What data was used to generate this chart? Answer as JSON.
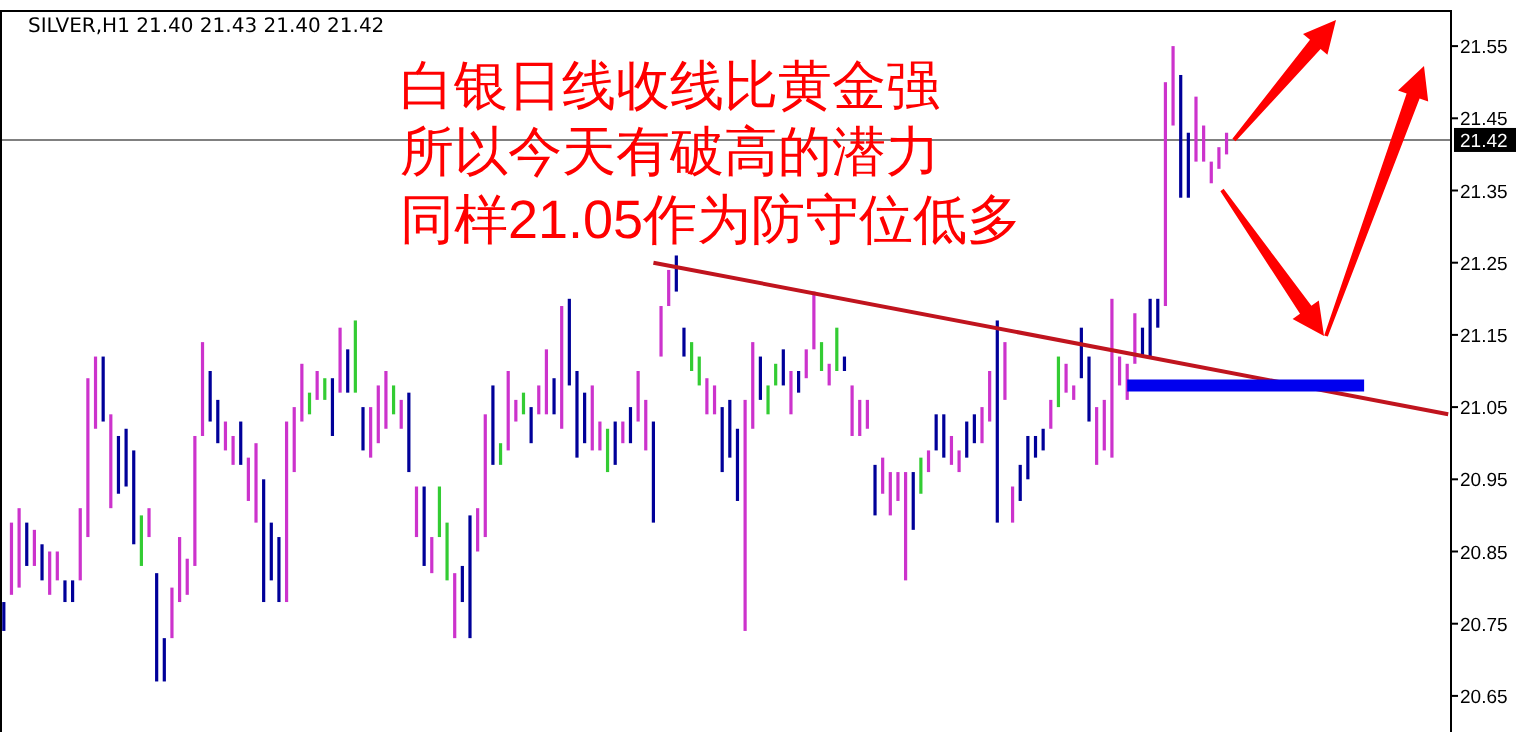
{
  "chart_data": {
    "type": "bar",
    "title": "SILVER,H1  21.40 21.43 21.40 21.42",
    "annotations": [
      "白银日线收线比黄金强",
      "所以今天有破高的潜力",
      "同样21.05作为防守位低多"
    ],
    "categories": [
      null,
      null,
      null,
      null,
      null,
      null,
      null,
      null,
      null,
      null,
      null,
      null,
      null,
      null,
      null,
      null,
      null,
      null,
      null,
      null,
      null,
      null,
      null,
      null,
      null,
      null,
      null,
      null,
      null,
      null,
      null,
      null,
      null,
      null,
      null,
      null,
      null,
      null,
      null,
      null,
      null,
      null,
      null,
      null,
      null,
      null,
      null,
      null,
      null,
      null,
      null,
      null,
      null,
      null,
      null,
      null,
      null,
      null,
      null,
      null,
      null,
      null,
      null,
      null,
      null,
      null,
      null,
      null,
      null,
      null,
      null,
      null,
      null,
      null,
      null,
      null,
      null,
      null,
      null,
      null,
      null,
      null,
      null,
      null,
      null,
      null,
      null,
      null,
      null,
      null,
      null,
      null,
      null,
      null,
      null,
      null,
      null,
      null,
      null,
      null,
      null,
      null,
      null,
      null,
      null,
      null,
      null,
      null,
      null,
      null,
      null,
      null,
      null,
      null,
      null,
      null,
      null,
      null,
      null,
      null,
      null,
      null,
      null,
      null,
      null,
      null,
      null,
      null,
      null,
      null,
      null,
      null,
      null,
      null,
      null,
      null,
      null,
      null,
      null,
      null,
      null,
      null,
      null,
      null,
      null,
      null,
      null,
      null,
      null,
      null,
      null,
      null,
      null,
      null,
      null,
      null,
      null,
      null,
      null,
      null,
      null,
      null,
      null,
      null,
      null,
      null,
      null,
      null,
      null,
      null,
      null,
      null,
      null,
      null,
      null,
      null,
      null,
      null,
      null,
      null,
      null,
      null,
      null,
      null,
      null,
      null,
      null,
      null,
      null,
      null
    ],
    "ylim": [
      20.6,
      21.6
    ],
    "yticks": [
      20.65,
      20.75,
      20.85,
      20.95,
      21.05,
      21.15,
      21.25,
      21.35,
      21.45,
      21.55
    ],
    "ref_lines": [
      {
        "axis": "y",
        "value": 21.42,
        "label": "21.42",
        "color": "#808080"
      }
    ],
    "series": [
      {
        "base": [
          20.74,
          20.79,
          20.8,
          20.83,
          20.83,
          20.81,
          20.79,
          20.81,
          20.78,
          20.78,
          20.81,
          20.87,
          21.02,
          21.03,
          20.91,
          20.93,
          20.94,
          20.86,
          20.83,
          20.87,
          20.67,
          20.67,
          20.73,
          20.78,
          20.79,
          20.83,
          21.01,
          21.03,
          21.0,
          20.99,
          20.97,
          20.97,
          20.92,
          20.89,
          20.78,
          20.81,
          20.78,
          20.78,
          20.96,
          21.03,
          21.04,
          21.06,
          21.06,
          21.01,
          21.07,
          21.07,
          21.07,
          20.99,
          20.98,
          21.0,
          21.02,
          21.04,
          21.02,
          20.96,
          20.87,
          20.83,
          20.82,
          20.87,
          20.81,
          20.73,
          20.78,
          20.73,
          20.85,
          20.87,
          20.97,
          20.97,
          20.99,
          21.03,
          21.04,
          21.0,
          21.04,
          21.04,
          21.04,
          21.02,
          21.08,
          20.98,
          21.0,
          20.99,
          20.99,
          20.96,
          20.97,
          21.0,
          21.0,
          21.03,
          20.99,
          20.89,
          21.12,
          21.19,
          21.21,
          21.12,
          21.1,
          21.08,
          21.04,
          21.04,
          20.96,
          20.98,
          20.92,
          20.74,
          21.02,
          21.06,
          21.04,
          21.08,
          21.08,
          21.04,
          21.07,
          21.09,
          21.13,
          21.1,
          21.08,
          21.1,
          21.1,
          21.01,
          21.01,
          21.02,
          20.9,
          20.93,
          20.9,
          20.92,
          20.81,
          20.88,
          20.93,
          20.96,
          20.99,
          20.98,
          20.97,
          20.96,
          20.98,
          21.0,
          21.0,
          21.03,
          20.89,
          21.06,
          20.89,
          20.92,
          20.95,
          20.98,
          20.99,
          21.02,
          21.05,
          21.07,
          21.06,
          21.09,
          21.03,
          20.97,
          20.99,
          20.98,
          21.08,
          21.06,
          21.11,
          21.12,
          21.12,
          21.16,
          21.19,
          21.44,
          21.34,
          21.34,
          21.39,
          21.39,
          21.36,
          21.38,
          21.4,
          null,
          null,
          null,
          null,
          null,
          null,
          null,
          null,
          null,
          null,
          null,
          null,
          null,
          null,
          null,
          null,
          null,
          null,
          null,
          null,
          null,
          null,
          null,
          null,
          null,
          null,
          null,
          null,
          null
        ],
        "values": [
          0.04,
          0.1,
          0.11,
          0.06,
          0.05,
          0.05,
          0.06,
          0.04,
          0.03,
          0.03,
          0.1,
          0.22,
          0.1,
          0.09,
          0.13,
          0.08,
          0.08,
          0.13,
          0.07,
          0.04,
          0.15,
          0.06,
          0.07,
          0.09,
          0.05,
          0.18,
          0.13,
          0.07,
          0.06,
          0.04,
          0.04,
          0.06,
          0.06,
          0.11,
          0.17,
          0.08,
          0.09,
          0.25,
          0.09,
          0.08,
          0.03,
          0.04,
          0.03,
          0.08,
          0.09,
          0.06,
          0.1,
          0.06,
          0.07,
          0.08,
          0.08,
          0.04,
          0.04,
          0.11,
          0.07,
          0.11,
          0.05,
          0.07,
          0.08,
          0.09,
          0.05,
          0.17,
          0.06,
          0.17,
          0.11,
          0.03,
          0.11,
          0.03,
          0.03,
          0.05,
          0.04,
          0.09,
          0.05,
          0.17,
          0.12,
          0.12,
          0.07,
          0.09,
          0.04,
          0.06,
          0.06,
          0.03,
          0.05,
          0.07,
          0.07,
          0.14,
          0.07,
          0.05,
          0.05,
          0.04,
          0.04,
          0.04,
          0.05,
          0.04,
          0.09,
          0.08,
          0.1,
          0.32,
          0.12,
          0.06,
          0.04,
          0.03,
          0.05,
          0.06,
          0.03,
          0.04,
          0.08,
          0.04,
          0.03,
          0.06,
          0.02,
          0.07,
          0.05,
          0.04,
          0.07,
          0.05,
          0.06,
          0.04,
          0.15,
          0.08,
          0.05,
          0.03,
          0.05,
          0.06,
          0.04,
          0.03,
          0.05,
          0.04,
          0.05,
          0.07,
          0.28,
          0.08,
          0.05,
          0.05,
          0.06,
          0.03,
          0.03,
          0.04,
          0.07,
          0.04,
          0.02,
          0.07,
          0.09,
          0.08,
          0.07,
          0.22,
          0.04,
          0.05,
          0.07,
          0.04,
          0.08,
          0.04,
          0.31,
          0.11,
          0.17,
          0.09,
          0.09,
          0.05,
          0.03,
          0.03,
          0.03,
          null,
          null,
          null,
          null,
          null,
          null,
          null,
          null,
          null,
          null,
          null,
          null,
          null,
          null,
          null,
          null,
          null,
          null,
          null,
          null,
          null,
          null,
          null,
          null,
          null,
          null,
          null,
          null,
          null
        ],
        "colors": [
          "#000099",
          "#cc33cc",
          "#cc33cc",
          "#000099",
          "#cc33cc",
          "#000099",
          "#cc33cc",
          "#cc33cc",
          "#000099",
          "#000099",
          "#cc33cc",
          "#cc33cc",
          "#cc33cc",
          "#000099",
          "#cc33cc",
          "#000099",
          "#000099",
          "#000099",
          "#33cc33",
          "#cc33cc",
          "#000099",
          "#000099",
          "#cc33cc",
          "#cc33cc",
          "#cc33cc",
          "#cc33cc",
          "#cc33cc",
          "#000099",
          "#000099",
          "#cc33cc",
          "#cc33cc",
          "#000099",
          "#cc33cc",
          "#cc33cc",
          "#000099",
          "#000099",
          "#000099",
          "#cc33cc",
          "#cc33cc",
          "#cc33cc",
          "#33cc33",
          "#cc33cc",
          "#33cc33",
          "#000099",
          "#cc33cc",
          "#000099",
          "#33cc33",
          "#000099",
          "#cc33cc",
          "#cc33cc",
          "#cc33cc",
          "#33cc33",
          "#cc33cc",
          "#000099",
          "#cc33cc",
          "#000099",
          "#cc33cc",
          "#33cc33",
          "#33cc33",
          "#cc33cc",
          "#000099",
          "#000099",
          "#cc33cc",
          "#cc33cc",
          "#000099",
          "#33cc33",
          "#cc33cc",
          "#cc33cc",
          "#33cc33",
          "#000099",
          "#cc33cc",
          "#cc33cc",
          "#000099",
          "#cc33cc",
          "#000099",
          "#000099",
          "#000099",
          "#cc33cc",
          "#cc33cc",
          "#33cc33",
          "#000099",
          "#cc33cc",
          "#000099",
          "#cc33cc",
          "#cc33cc",
          "#000099",
          "#cc33cc",
          "#cc33cc",
          "#000099",
          "#000099",
          "#33cc33",
          "#33cc33",
          "#cc33cc",
          "#cc33cc",
          "#000099",
          "#000099",
          "#000099",
          "#cc33cc",
          "#cc33cc",
          "#000099",
          "#33cc33",
          "#33cc33",
          "#000099",
          "#cc33cc",
          "#000099",
          "#cc33cc",
          "#cc33cc",
          "#33cc33",
          "#cc33cc",
          "#33cc33",
          "#000099",
          "#cc33cc",
          "#cc33cc",
          "#cc33cc",
          "#000099",
          "#cc33cc",
          "#cc33cc",
          "#cc33cc",
          "#cc33cc",
          "#000099",
          "#33cc33",
          "#cc33cc",
          "#000099",
          "#000099",
          "#cc33cc",
          "#cc33cc",
          "#000099",
          "#000099",
          "#cc33cc",
          "#cc33cc",
          "#000099",
          "#cc33cc",
          "#cc33cc",
          "#000099",
          "#000099",
          "#000099",
          "#000099",
          "#cc33cc",
          "#33cc33",
          "#cc33cc",
          "#cc33cc",
          "#000099",
          "#000099",
          "#cc33cc",
          "#cc33cc",
          "#cc33cc",
          "#cc33cc",
          "#cc33cc",
          "#cc33cc",
          "#000099",
          "#000099",
          "#000099",
          "#cc33cc",
          "#cc33cc",
          "#000099",
          "#000099",
          "#cc33cc",
          "#cc33cc",
          "#cc33cc",
          "#cc33cc",
          "#cc33cc",
          null,
          null,
          null,
          null,
          null,
          null,
          null,
          null,
          null,
          null,
          null,
          null,
          null,
          null,
          null,
          null,
          null,
          null,
          null,
          null,
          null,
          null,
          null,
          null,
          null,
          null,
          null,
          null,
          null
        ]
      },
      {
        "type": "line",
        "color": "#c0141e",
        "values": [
          null,
          null,
          null,
          null,
          null,
          null,
          null,
          null,
          null,
          null,
          null,
          null,
          null,
          null,
          null,
          null,
          null,
          null,
          null,
          null,
          null,
          null,
          null,
          null,
          null,
          null,
          null,
          null,
          null,
          null,
          null,
          null,
          null,
          null,
          null,
          null,
          null,
          null,
          null,
          null,
          null,
          null,
          null,
          null,
          null,
          null,
          null,
          null,
          null,
          null,
          null,
          null,
          null,
          null,
          null,
          null,
          null,
          null,
          null,
          null,
          null,
          null,
          null,
          null,
          null,
          null,
          null,
          null,
          null,
          null,
          null,
          null,
          null,
          null,
          null,
          null,
          null,
          null,
          null,
          null,
          null,
          null,
          null,
          null,
          null,
          21.25,
          null,
          null,
          null,
          null,
          null,
          null,
          null,
          null,
          null,
          null,
          null,
          null,
          null,
          null,
          null,
          null,
          null,
          null,
          null,
          null,
          null,
          null,
          null,
          null,
          null,
          null,
          null,
          null,
          null,
          null,
          null,
          null,
          null,
          null,
          null,
          null,
          null,
          null,
          null,
          null,
          null,
          null,
          null,
          null,
          null,
          null,
          null,
          null,
          null,
          null,
          null,
          null,
          null,
          null,
          null,
          null,
          null,
          null,
          null,
          null,
          null,
          null,
          null,
          null,
          null,
          null,
          null,
          null,
          null,
          null,
          null,
          null,
          null,
          null,
          null,
          null,
          null,
          null,
          null,
          null,
          null,
          null,
          null,
          null,
          null,
          null,
          null,
          null,
          null,
          null,
          null,
          null,
          null,
          null,
          null,
          null,
          null,
          null,
          null,
          null,
          null,
          null,
          null,
          21.04
        ]
      },
      {
        "type": "line",
        "color": "#0000ee",
        "values": [
          null,
          null,
          null,
          null,
          null,
          null,
          null,
          null,
          null,
          null,
          null,
          null,
          null,
          null,
          null,
          null,
          null,
          null,
          null,
          null,
          null,
          null,
          null,
          null,
          null,
          null,
          null,
          null,
          null,
          null,
          null,
          null,
          null,
          null,
          null,
          null,
          null,
          null,
          null,
          null,
          null,
          null,
          null,
          null,
          null,
          null,
          null,
          null,
          null,
          null,
          null,
          null,
          null,
          null,
          null,
          null,
          null,
          null,
          null,
          null,
          null,
          null,
          null,
          null,
          null,
          null,
          null,
          null,
          null,
          null,
          null,
          null,
          null,
          null,
          null,
          null,
          null,
          null,
          null,
          null,
          null,
          null,
          null,
          null,
          null,
          null,
          null,
          null,
          null,
          null,
          null,
          null,
          null,
          null,
          null,
          null,
          null,
          null,
          null,
          null,
          null,
          null,
          null,
          null,
          null,
          null,
          null,
          null,
          null,
          null,
          null,
          null,
          null,
          null,
          null,
          null,
          null,
          null,
          null,
          null,
          null,
          null,
          null,
          null,
          null,
          null,
          null,
          null,
          null,
          null,
          null,
          null,
          null,
          null,
          null,
          null,
          null,
          null,
          null,
          null,
          null,
          null,
          null,
          null,
          null,
          null,
          null,
          21.08,
          21.08,
          21.08,
          21.08,
          21.08,
          21.08,
          21.08,
          21.08,
          21.08,
          21.08,
          21.08,
          21.08,
          21.08,
          21.08,
          21.08,
          21.08,
          21.08,
          21.08,
          21.08,
          21.08,
          21.08,
          21.08,
          21.08,
          21.08,
          21.08,
          21.08,
          21.08,
          21.08,
          21.08,
          21.08,
          21.08,
          21.08,
          null,
          null,
          null,
          null,
          null,
          null,
          null,
          null,
          null,
          null,
          null
        ]
      }
    ]
  }
}
